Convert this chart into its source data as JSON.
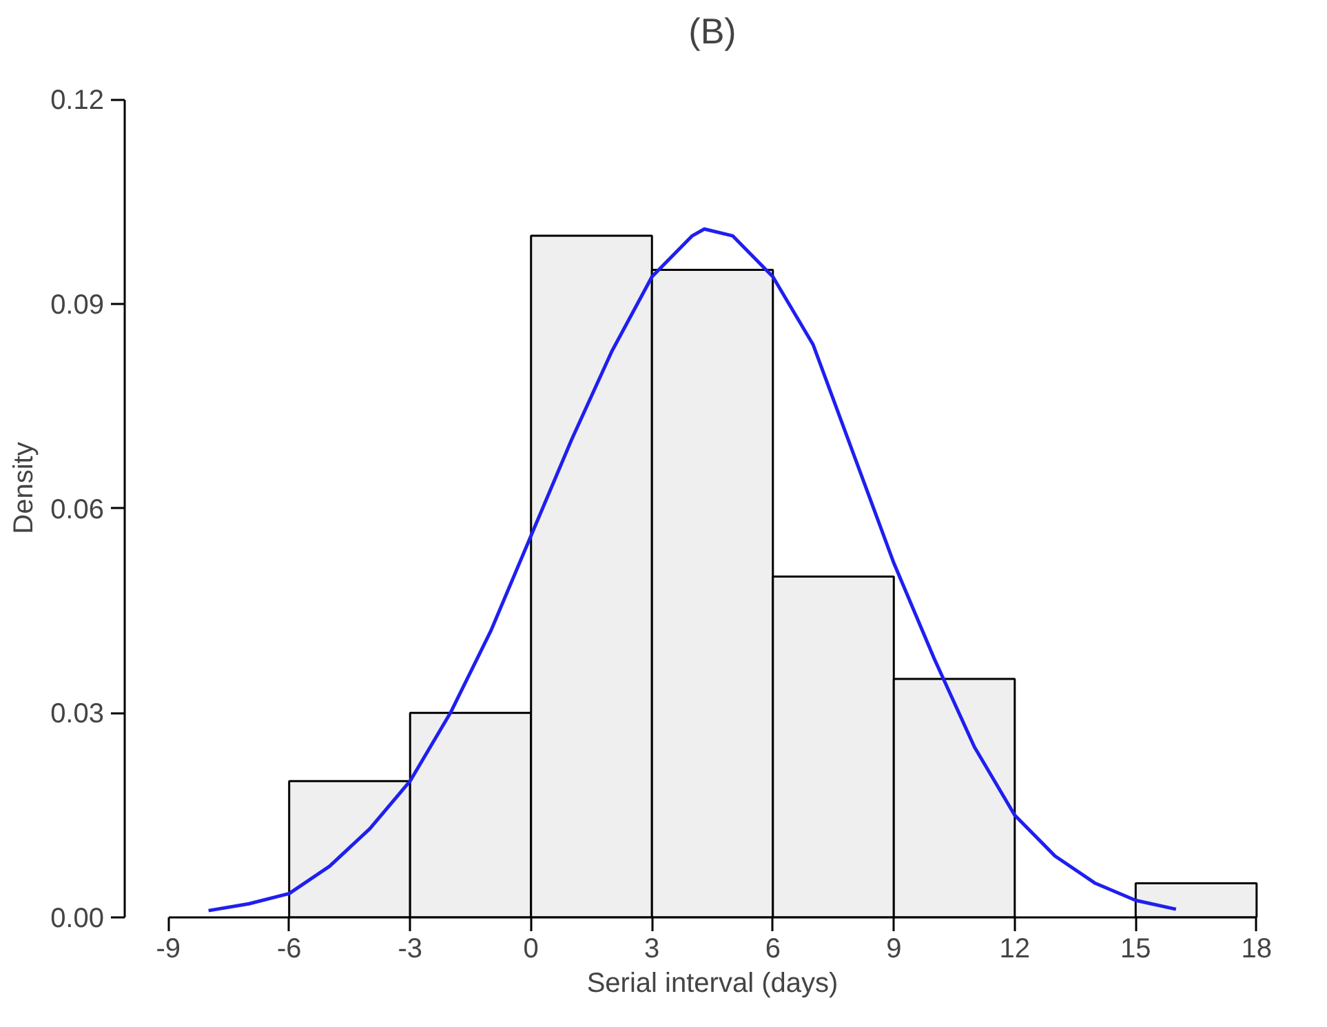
{
  "chart_data": {
    "type": "histogram",
    "title": "(B)",
    "xlabel": "Serial interval (days)",
    "ylabel": "Density",
    "bins": [
      -6,
      -3,
      0,
      3,
      6,
      9,
      12,
      15,
      18
    ],
    "values": [
      0.02,
      0.03,
      0.1,
      0.095,
      0.05,
      0.035,
      0,
      0.005
    ],
    "color": "#efefef",
    "series": [
      {
        "type": "line",
        "color": "#1f1fef",
        "x": [
          -8,
          -7,
          -6,
          -5,
          -4,
          -3,
          -2,
          -1,
          0,
          1,
          2,
          3,
          4,
          4.3,
          5,
          6,
          7,
          8,
          9,
          10,
          11,
          12,
          13,
          14,
          15,
          16
        ],
        "values": [
          0.001,
          0.002,
          0.0035,
          0.0075,
          0.013,
          0.02,
          0.03,
          0.042,
          0.056,
          0.07,
          0.083,
          0.094,
          0.1,
          0.101,
          0.1,
          0.094,
          0.084,
          0.068,
          0.052,
          0.038,
          0.025,
          0.015,
          0.009,
          0.005,
          0.0025,
          0.0012
        ]
      }
    ],
    "xlim": [
      -9,
      18
    ],
    "xticks": [
      -9,
      -6,
      -3,
      0,
      3,
      6,
      9,
      12,
      15,
      18
    ],
    "ylim": [
      0,
      0.12
    ],
    "yticks": [
      {
        "value": 0,
        "label": "0.00"
      },
      {
        "value": 0.03,
        "label": "0.03"
      },
      {
        "value": 0.06,
        "label": "0.06"
      },
      {
        "value": 0.09,
        "label": "0.09"
      },
      {
        "value": 0.12,
        "label": "0.12"
      }
    ],
    "grid": false
  }
}
